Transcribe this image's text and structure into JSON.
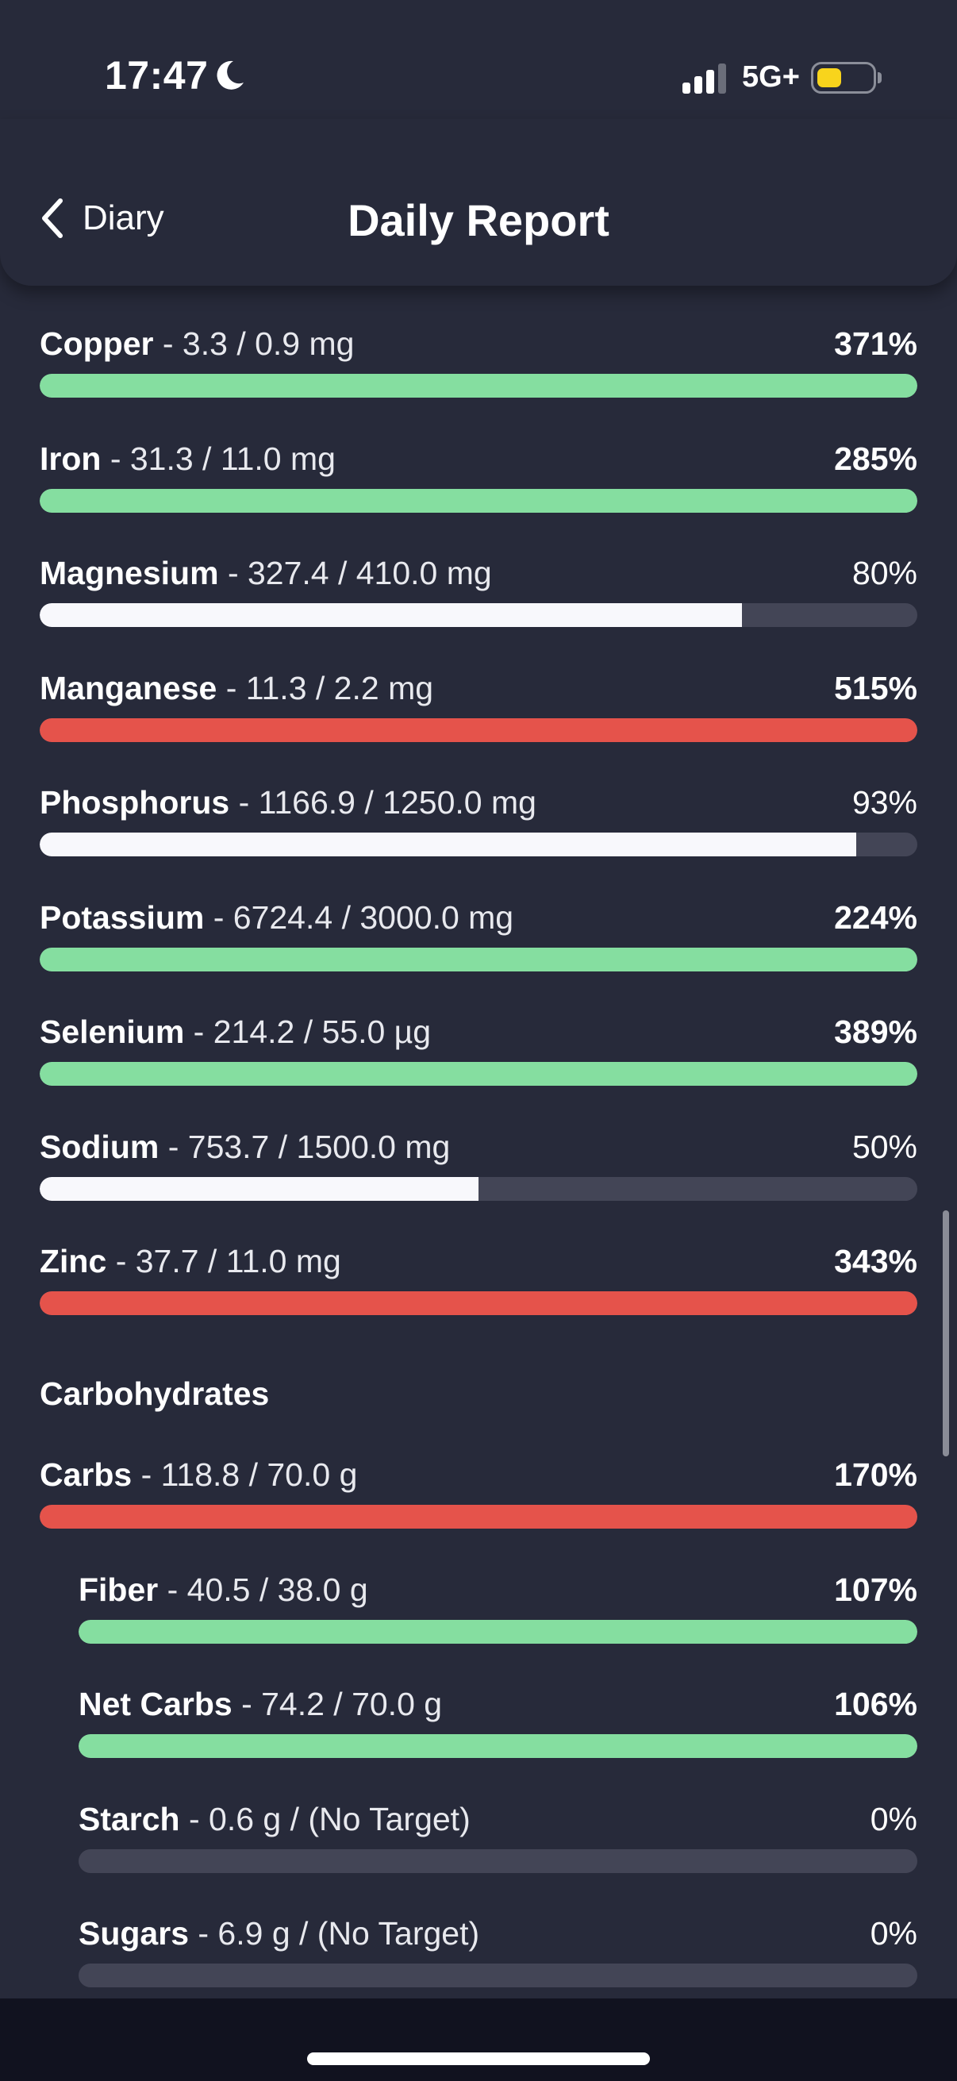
{
  "status_bar": {
    "time": "17:47",
    "network": "5G+",
    "battery_color": "#f8d41c"
  },
  "header": {
    "back_label": "Diary",
    "title": "Daily Report"
  },
  "colors": {
    "good": "#85dea0",
    "over": "#e5534b",
    "under": "#f8f8fc",
    "track": "#434556"
  },
  "minerals": [
    {
      "name": "Copper",
      "detail": " - 3.3 / 0.9 mg",
      "percent": "371%",
      "fill_fraction": 1.0,
      "status": "good"
    },
    {
      "name": "Iron",
      "detail": " - 31.3 / 11.0 mg",
      "percent": "285%",
      "fill_fraction": 1.0,
      "status": "good"
    },
    {
      "name": "Magnesium",
      "detail": " - 327.4 / 410.0 mg",
      "percent": "80%",
      "fill_fraction": 0.8,
      "status": "under"
    },
    {
      "name": "Manganese",
      "detail": " - 11.3 / 2.2 mg",
      "percent": "515%",
      "fill_fraction": 1.0,
      "status": "over"
    },
    {
      "name": "Phosphorus",
      "detail": " - 1166.9 / 1250.0 mg",
      "percent": "93%",
      "fill_fraction": 0.93,
      "status": "under"
    },
    {
      "name": "Potassium",
      "detail": " - 6724.4 / 3000.0 mg",
      "percent": "224%",
      "fill_fraction": 1.0,
      "status": "good"
    },
    {
      "name": "Selenium",
      "detail": " - 214.2 / 55.0 µg",
      "percent": "389%",
      "fill_fraction": 1.0,
      "status": "good"
    },
    {
      "name": "Sodium",
      "detail": " - 753.7 / 1500.0 mg",
      "percent": "50%",
      "fill_fraction": 0.5,
      "status": "under"
    },
    {
      "name": "Zinc",
      "detail": " - 37.7 / 11.0 mg",
      "percent": "343%",
      "fill_fraction": 1.0,
      "status": "over"
    }
  ],
  "carbohydrates": {
    "section_title": "Carbohydrates",
    "items": [
      {
        "name": "Carbs",
        "detail": " - 118.8 / 70.0 g",
        "percent": "170%",
        "fill_fraction": 1.0,
        "status": "over",
        "indent": false
      },
      {
        "name": "Fiber",
        "detail": " - 40.5 / 38.0 g",
        "percent": "107%",
        "fill_fraction": 1.0,
        "status": "good",
        "indent": true
      },
      {
        "name": "Net Carbs",
        "detail": " - 74.2 / 70.0 g",
        "percent": "106%",
        "fill_fraction": 1.0,
        "status": "good",
        "indent": true
      },
      {
        "name": "Starch",
        "detail": " - 0.6 g / (No Target)",
        "percent": "0%",
        "fill_fraction": 0.0,
        "status": "none",
        "indent": true
      },
      {
        "name": "Sugars",
        "detail": " - 6.9 g / (No Target)",
        "percent": "0%",
        "fill_fraction": 0.0,
        "status": "none",
        "indent": true
      }
    ]
  }
}
